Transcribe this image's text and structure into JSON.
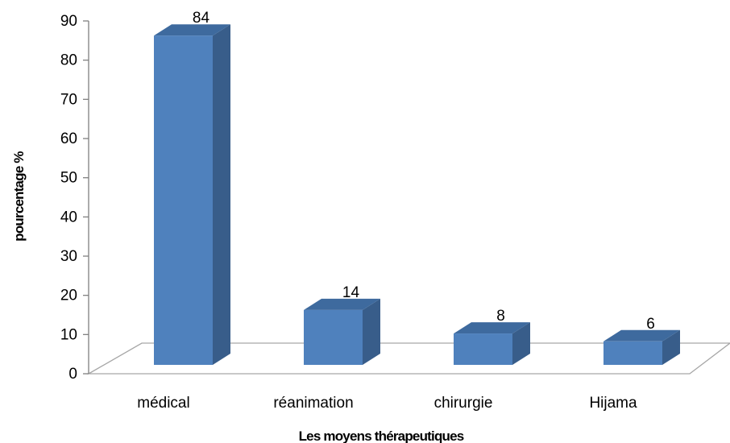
{
  "chart_data": {
    "type": "bar",
    "categories": [
      "médical",
      "réanimation",
      "chirurgie",
      "Hijama"
    ],
    "values": [
      84,
      14,
      8,
      6
    ],
    "data_labels": [
      "84",
      "14",
      "8",
      "6"
    ],
    "title": "",
    "xlabel": "Les moyens thérapeutiques",
    "ylabel": "pourcentage %",
    "ylim": [
      0,
      90
    ],
    "yticks": [
      "0",
      "10",
      "20",
      "30",
      "40",
      "50",
      "60",
      "70",
      "80",
      "90"
    ],
    "grid": false,
    "legend": "none",
    "style": "3d-column",
    "colors": {
      "bar_front": "#4F81BD",
      "bar_side": "#385D8A",
      "bar_top": "#3E6A9E",
      "floor_line": "#A6A6A6",
      "axis_line": "#808080"
    }
  }
}
